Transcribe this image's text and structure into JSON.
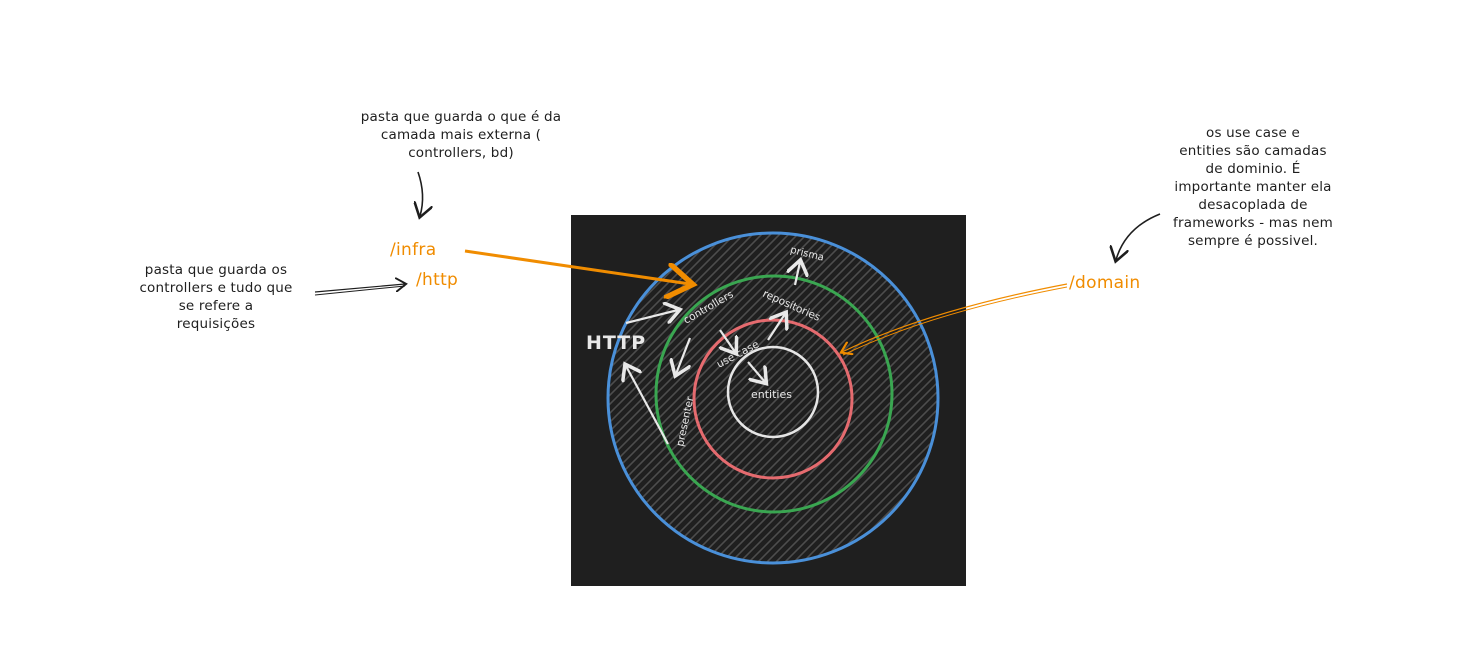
{
  "annotations": {
    "infra_note": "pasta que guarda o que é da\ncamada mais externa (\ncontrollers, bd)",
    "http_note": "pasta que guarda os\ncontrollers e tudo que\nse refere a\nrequisições",
    "domain_note": "os use case e\nentities são camadas\nde dominio. É\nimportante manter ela\ndesacoplada de\nframeworks - mas nem\nsempre é possivel."
  },
  "folders": {
    "infra": "/infra",
    "http": "/http",
    "domain": "/domain"
  },
  "diagram": {
    "http_label": "HTTP",
    "prisma": "prisma",
    "controllers": "controllers",
    "repositories": "repositories",
    "use_case": "use case",
    "presenter": "presenter",
    "entities": "entities"
  },
  "colors": {
    "accent": "#f08c00",
    "outer_ring": "#4a90d9",
    "middle_ring": "#3aa651",
    "inner_ring": "#e56b6f",
    "core_ring": "#e6e6e6",
    "panel": "#1f1f1f"
  }
}
